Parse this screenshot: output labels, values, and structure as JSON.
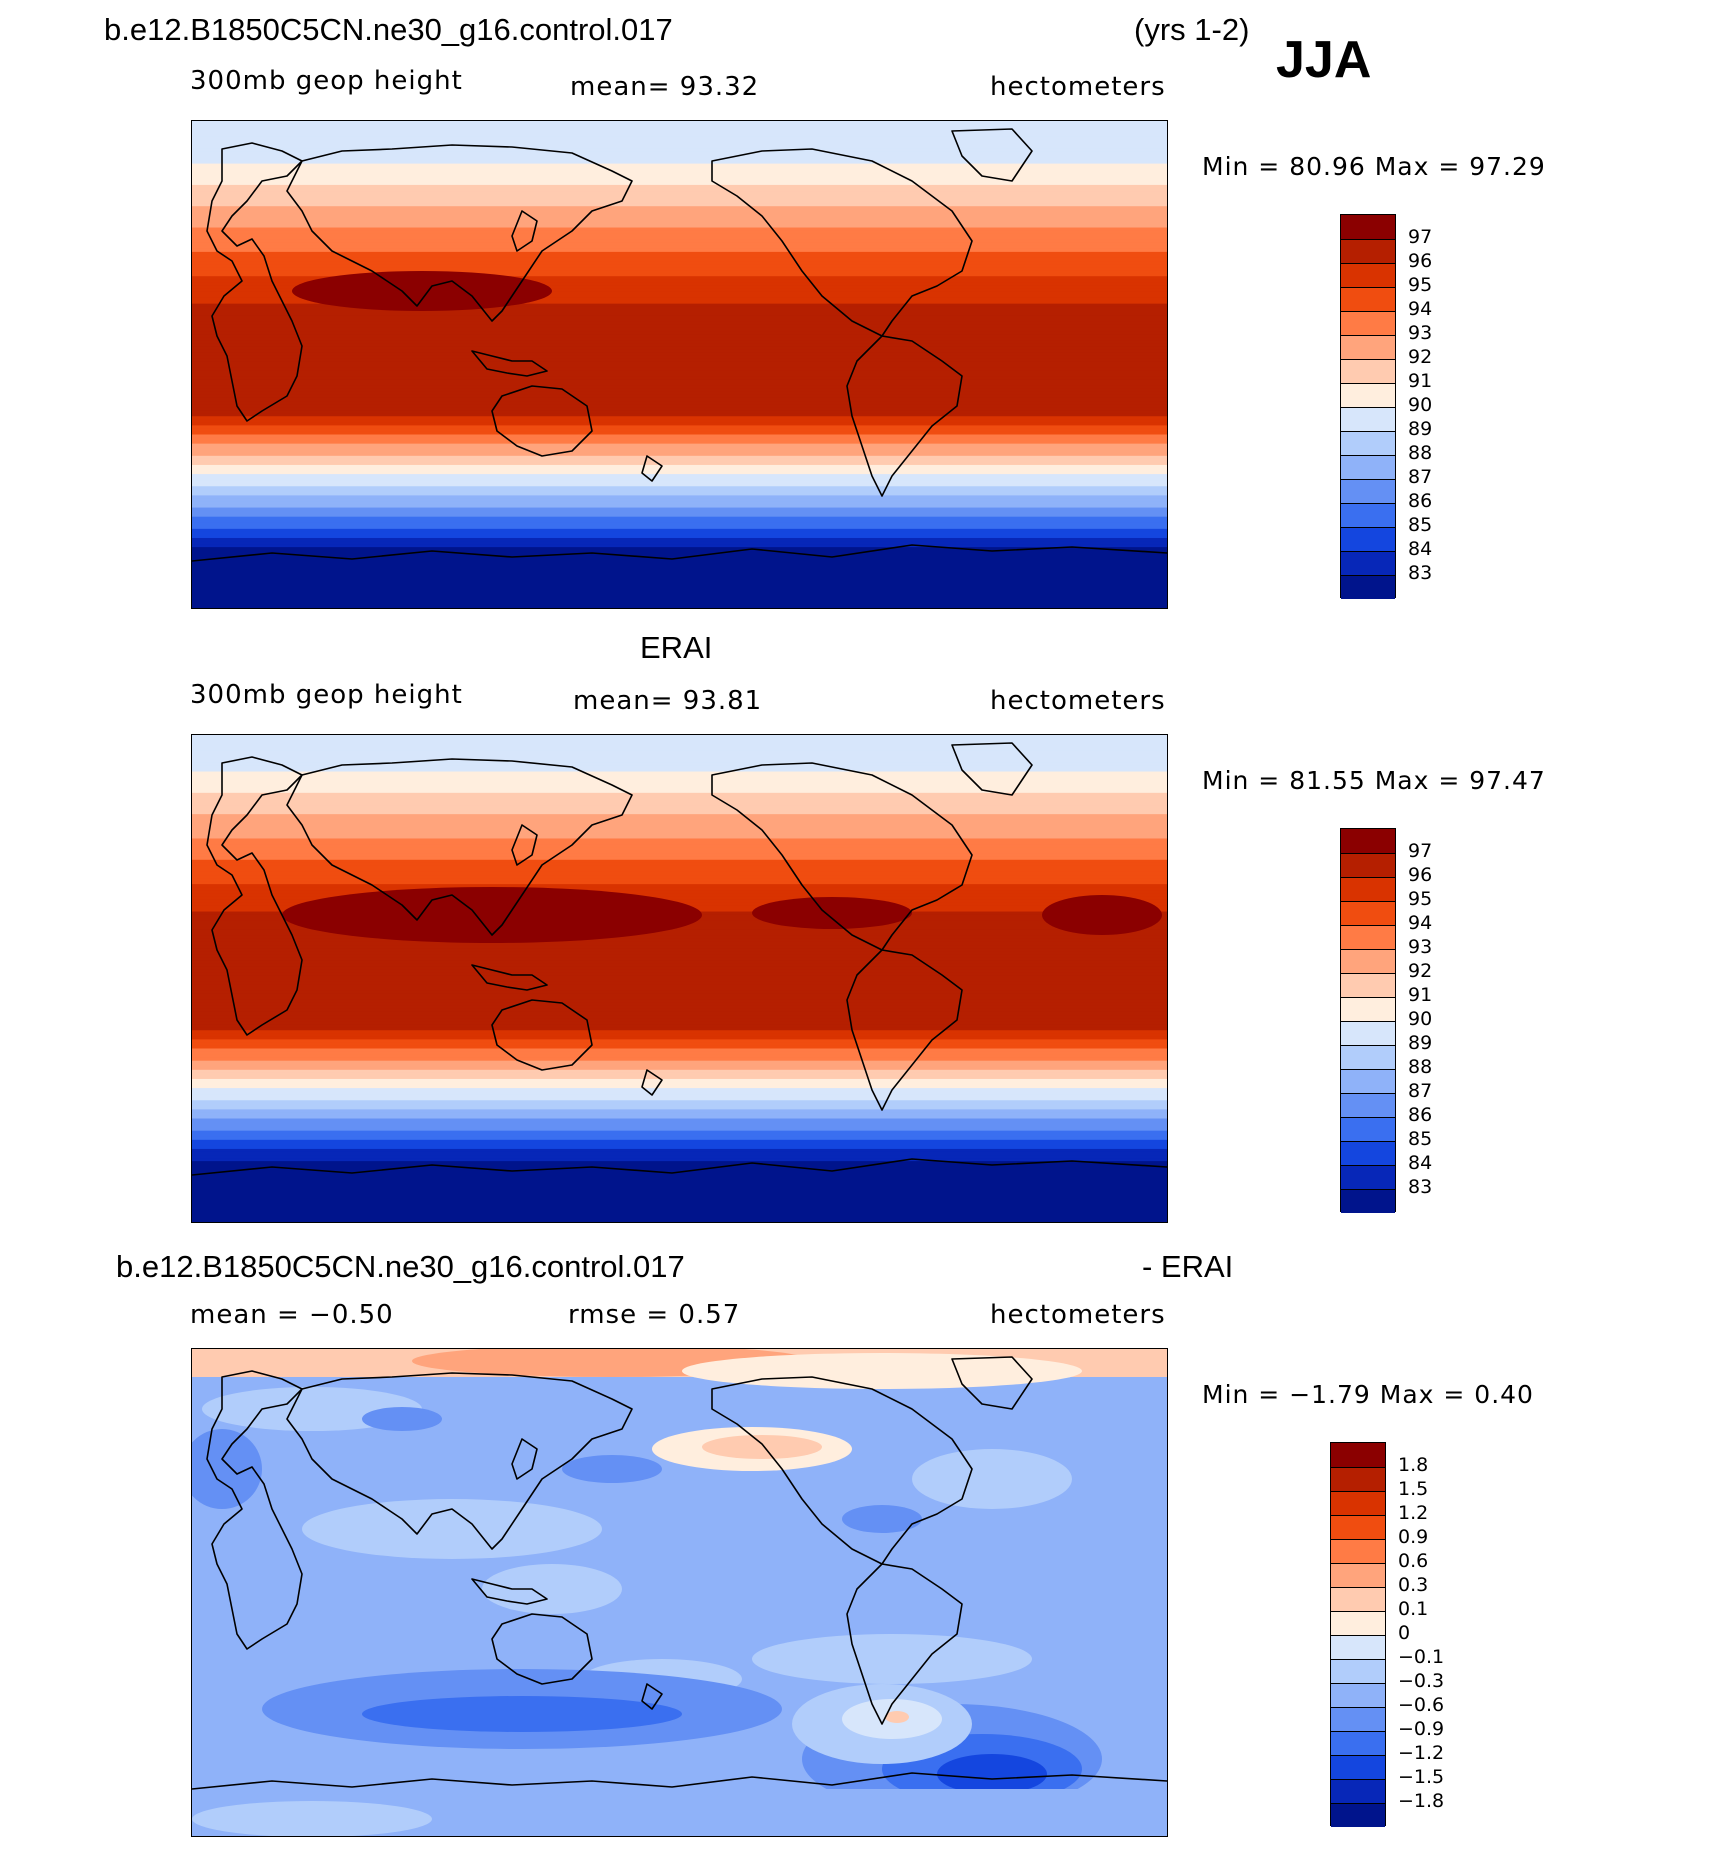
{
  "header": {
    "case_name": "b.e12.B1850C5CN.ne30_g16.control.017",
    "years": "(yrs 1-2)",
    "season": "JJA"
  },
  "panels": [
    {
      "id": "model",
      "title": "",
      "left_label": "300mb geop height",
      "center_label": "mean=   93.32",
      "right_label": "hectometers",
      "min_max": "Min =   80.96  Max =   97.29",
      "kind": "absolute",
      "eq_level": 96.4,
      "south_level": 82.5,
      "north_level": 89.5
    },
    {
      "id": "obs",
      "title": "ERAI",
      "left_label": "300mb geop height",
      "center_label": "mean=   93.81",
      "right_label": "hectometers",
      "min_max": "Min =   81.55  Max =   97.47",
      "kind": "absolute",
      "eq_level": 96.5,
      "south_level": 82.3,
      "north_level": 89.8
    },
    {
      "id": "diff",
      "title": "b.e12.B1850C5CN.ne30_g16.control.017",
      "title_suffix": "- ERAI",
      "left_label": "mean =   −0.50",
      "center_label": "rmse =    0.57",
      "right_label": "hectometers",
      "min_max": "Min =   −1.79  Max =    0.40",
      "kind": "difference"
    }
  ],
  "colorbars": {
    "absolute": {
      "labels": [
        "97",
        "96",
        "95",
        "94",
        "93",
        "92",
        "91",
        "90",
        "89",
        "88",
        "87",
        "86",
        "85",
        "84",
        "83"
      ],
      "colors": [
        "#8b0000",
        "#b51f00",
        "#d93300",
        "#f04d10",
        "#ff7b45",
        "#ffa47c",
        "#ffcbb0",
        "#ffeede",
        "#d7e6fb",
        "#b1cdfb",
        "#8fb2f9",
        "#6490f4",
        "#3a6ff0",
        "#1446df",
        "#0727b8",
        "#00148c"
      ]
    },
    "difference": {
      "labels": [
        "1.8",
        "1.5",
        "1.2",
        "0.9",
        "0.6",
        "0.3",
        "0.1",
        "0",
        "−0.1",
        "−0.3",
        "−0.6",
        "−0.9",
        "−1.2",
        "−1.5",
        "−1.8"
      ],
      "colors": [
        "#8b0000",
        "#b51f00",
        "#d93300",
        "#f04d10",
        "#ff7b45",
        "#ffa47c",
        "#ffcbb0",
        "#ffeede",
        "#d7e6fb",
        "#b1cdfb",
        "#8fb2f9",
        "#6490f4",
        "#3a6ff0",
        "#1446df",
        "#0727b8",
        "#00148c"
      ]
    }
  }
}
